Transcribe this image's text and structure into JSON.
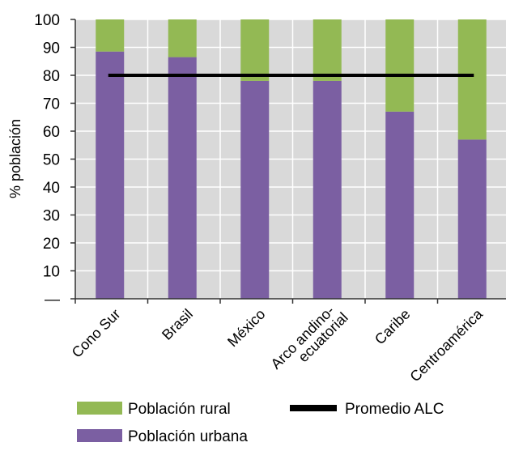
{
  "chart_data": {
    "type": "bar",
    "stacked": true,
    "categories": [
      "Cono Sur",
      "Brasil",
      "México",
      "Arco andino-\necuatorial",
      "Caribe",
      "Centroamérica"
    ],
    "series": [
      {
        "name": "Población urbana",
        "color": "#7b5fa2",
        "values": [
          88.5,
          86.5,
          78,
          78,
          67,
          57
        ]
      },
      {
        "name": "Población rural",
        "color": "#93b954",
        "values": [
          11.5,
          13.5,
          22,
          22,
          33,
          43
        ]
      }
    ],
    "reference_line": {
      "name": "Promedio ALC",
      "color": "#000000",
      "value": 80
    },
    "ylabel": "% población",
    "xlabel": "",
    "ylim": [
      0,
      100
    ],
    "yticks": [
      "—",
      "10",
      "20",
      "30",
      "40",
      "50",
      "60",
      "70",
      "80",
      "90",
      "100"
    ],
    "grid": true,
    "plot_background": "#d9d9d9",
    "legend_position": "bottom",
    "legend": [
      {
        "label": "Población rural",
        "color": "#93b954",
        "kind": "box"
      },
      {
        "label": "Promedio ALC",
        "color": "#000000",
        "kind": "line"
      },
      {
        "label": "Población urbana",
        "color": "#7b5fa2",
        "kind": "box"
      }
    ]
  }
}
